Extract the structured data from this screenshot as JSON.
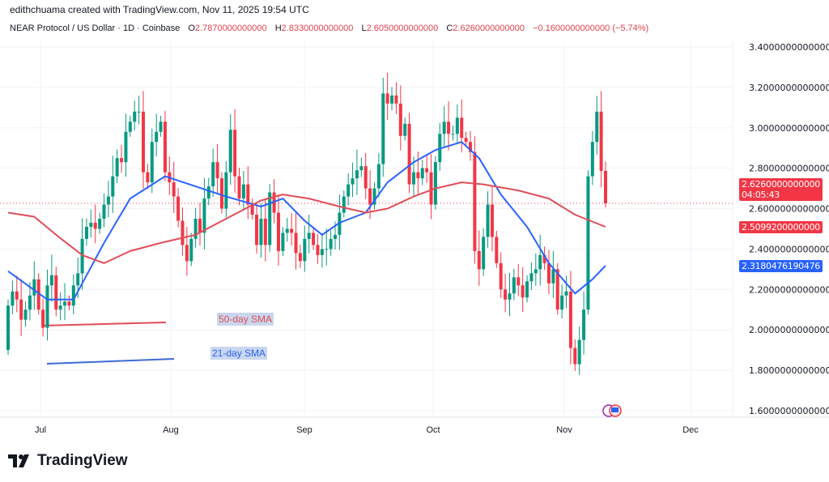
{
  "header": {
    "credit": "edithchuama created with TradingView.com, Nov 11, 2025 19:54 UTC",
    "symbol": "NEAR Protocol / US Dollar · 1D · Coinbase",
    "open_label": "O",
    "open": "2.7870000000000",
    "high_label": "H",
    "high": "2.8330000000000",
    "low_label": "L",
    "low": "2.6050000000000",
    "close_label": "C",
    "close": "2.6260000000000",
    "change": "−0.1600000000000 (−5.74%)"
  },
  "price_tags": {
    "last": "2.6260000000000",
    "countdown": "04:05:43",
    "sma50": "2.5099200000000",
    "sma21": "2.3180476190476"
  },
  "annotations": {
    "sma50_label": "50-day SMA",
    "sma21_label": "21-day SMA"
  },
  "logo": {
    "text": "TradingView"
  },
  "colors": {
    "up": "#089981",
    "down": "#f23645",
    "sma21": "#2962ff",
    "sma50": "#e04e57",
    "grid": "#f0f3fa"
  },
  "chart_data": {
    "type": "candlestick",
    "title": "NEAR Protocol / US Dollar · 1D · Coinbase",
    "x_tick_labels": [
      "Jul",
      "Aug",
      "Sep",
      "Oct",
      "Nov",
      "Dec"
    ],
    "y_tick_labels": [
      "3.4000000000000",
      "3.2000000000000",
      "3.0000000000000",
      "2.8000000000000",
      "2.6000000000000",
      "2.4000000000000",
      "2.2000000000000",
      "2.0000000000000",
      "1.8000000000000",
      "1.6000000000000"
    ],
    "ylim": [
      1.6,
      3.4
    ],
    "grid": true,
    "first_open": 1.9,
    "closes": [
      2.12,
      2.19,
      2.15,
      2.05,
      2.1,
      2.17,
      2.25,
      2.1,
      2.01,
      2.22,
      2.27,
      2.1,
      2.12,
      2.14,
      2.12,
      2.22,
      2.28,
      2.45,
      2.51,
      2.53,
      2.5,
      2.55,
      2.62,
      2.66,
      2.76,
      2.85,
      2.83,
      2.98,
      3.03,
      3.08,
      3.08,
      2.78,
      2.73,
      2.93,
      2.98,
      3.03,
      2.78,
      2.73,
      2.66,
      2.54,
      2.42,
      2.34,
      2.45,
      2.55,
      2.48,
      2.65,
      2.71,
      2.83,
      2.75,
      2.6,
      2.78,
      2.99,
      2.76,
      2.65,
      2.72,
      2.62,
      2.57,
      2.42,
      2.55,
      2.42,
      2.68,
      2.58,
      2.39,
      2.48,
      2.5,
      2.48,
      2.38,
      2.34,
      2.45,
      2.48,
      2.42,
      2.37,
      2.4,
      2.4,
      2.45,
      2.47,
      2.58,
      2.66,
      2.72,
      2.75,
      2.79,
      2.81,
      2.7,
      2.62,
      2.7,
      2.82,
      3.17,
      3.12,
      3.16,
      3.12,
      2.96,
      3.02,
      2.72,
      2.78,
      2.75,
      2.8,
      2.78,
      2.62,
      2.83,
      2.97,
      3.03,
      2.97,
      2.97,
      3.05,
      2.95,
      2.93,
      2.88,
      2.39,
      2.3,
      2.46,
      2.62,
      2.46,
      2.33,
      2.2,
      2.15,
      2.18,
      2.26,
      2.22,
      2.16,
      2.24,
      2.28,
      2.3,
      2.37,
      2.33,
      2.23,
      2.3,
      2.1,
      2.17,
      2.19,
      1.91,
      1.83,
      1.95,
      2.1,
      2.76,
      2.93,
      3.08,
      2.787,
      2.626
    ],
    "last_candle": {
      "o": 2.787,
      "h": 2.833,
      "l": 2.605,
      "c": 2.626
    },
    "series": [
      {
        "name": "21-day SMA",
        "points": [
          [
            0,
            2.29
          ],
          [
            9,
            2.15
          ],
          [
            15,
            2.15
          ],
          [
            22,
            2.43
          ],
          [
            28,
            2.65
          ],
          [
            36,
            2.76
          ],
          [
            43,
            2.71
          ],
          [
            50,
            2.66
          ],
          [
            58,
            2.61
          ],
          [
            63,
            2.65
          ],
          [
            68,
            2.54
          ],
          [
            72,
            2.47
          ],
          [
            76,
            2.53
          ],
          [
            82,
            2.58
          ],
          [
            87,
            2.73
          ],
          [
            93,
            2.83
          ],
          [
            98,
            2.89
          ],
          [
            104,
            2.93
          ],
          [
            108,
            2.85
          ],
          [
            113,
            2.67
          ],
          [
            119,
            2.51
          ],
          [
            124,
            2.33
          ],
          [
            130,
            2.18
          ],
          [
            134,
            2.25
          ],
          [
            137,
            2.318
          ]
        ]
      },
      {
        "name": "50-day SMA",
        "points": [
          [
            0,
            2.58
          ],
          [
            6,
            2.56
          ],
          [
            11,
            2.47
          ],
          [
            17,
            2.37
          ],
          [
            22,
            2.33
          ],
          [
            28,
            2.39
          ],
          [
            35,
            2.43
          ],
          [
            43,
            2.47
          ],
          [
            50,
            2.55
          ],
          [
            58,
            2.64
          ],
          [
            63,
            2.67
          ],
          [
            69,
            2.65
          ],
          [
            76,
            2.61
          ],
          [
            82,
            2.58
          ],
          [
            87,
            2.6
          ],
          [
            93,
            2.66
          ],
          [
            98,
            2.7
          ],
          [
            104,
            2.73
          ],
          [
            109,
            2.72
          ],
          [
            117,
            2.69
          ],
          [
            124,
            2.65
          ],
          [
            130,
            2.57
          ],
          [
            137,
            2.5099
          ]
        ]
      }
    ]
  }
}
